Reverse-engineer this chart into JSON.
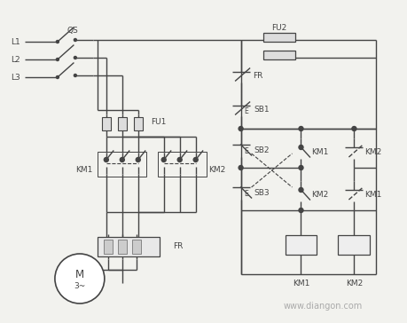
{
  "bg_color": "#f2f2ee",
  "lc": "#444444",
  "lw": 1.0,
  "fig_w": 4.4,
  "fig_h": 3.45,
  "watermark": "www.diangon.com",
  "watermark_color": "#aaaaaa",
  "watermark_fs": 7,
  "label_fs": 6.5,
  "small_fs": 5.5
}
